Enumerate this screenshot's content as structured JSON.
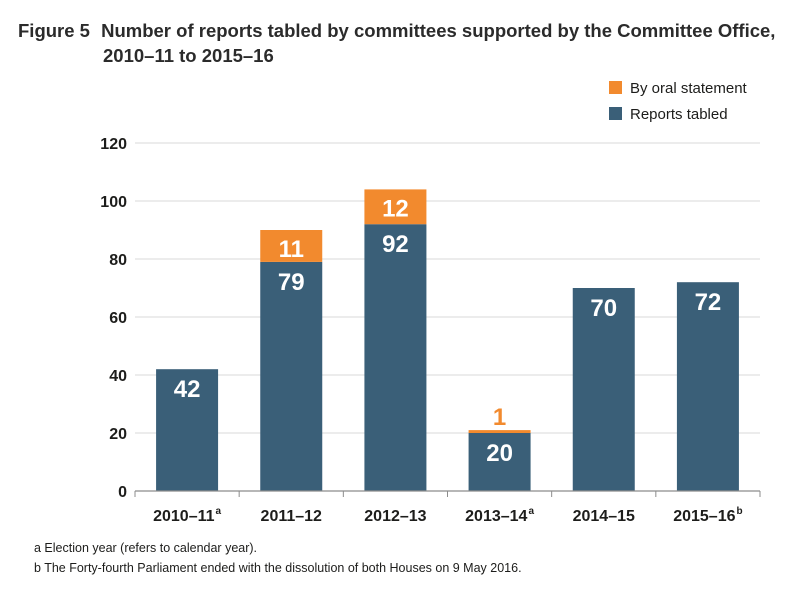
{
  "title": {
    "label": "Figure 5",
    "line1": "Number of reports tabled by committees supported by the Committee Office,",
    "line2": "2010–11 to 2015–16"
  },
  "chart_data": {
    "type": "bar",
    "stacked": true,
    "categories": [
      "2010–11",
      "2011–12",
      "2012–13",
      "2013–14",
      "2014–15",
      "2015–16"
    ],
    "category_superscripts": [
      "a",
      "",
      "",
      "a",
      "",
      "b"
    ],
    "series": [
      {
        "name": "Reports tabled",
        "color": "#3a5f78",
        "values": [
          42,
          79,
          92,
          20,
          70,
          72
        ]
      },
      {
        "name": "By oral statement",
        "color": "#f28a2e",
        "values": [
          0,
          11,
          12,
          1,
          0,
          0
        ]
      }
    ],
    "ylim": [
      0,
      120
    ],
    "yticks": [
      0,
      20,
      40,
      60,
      80,
      100,
      120
    ],
    "grid": true,
    "legend_position": "top-right",
    "legend_order": [
      "By oral statement",
      "Reports tabled"
    ]
  },
  "footnotes": [
    "a Election year (refers to calendar year).",
    "b The Forty-fourth Parliament ended with the dissolution of both Houses on 9 May 2016."
  ]
}
